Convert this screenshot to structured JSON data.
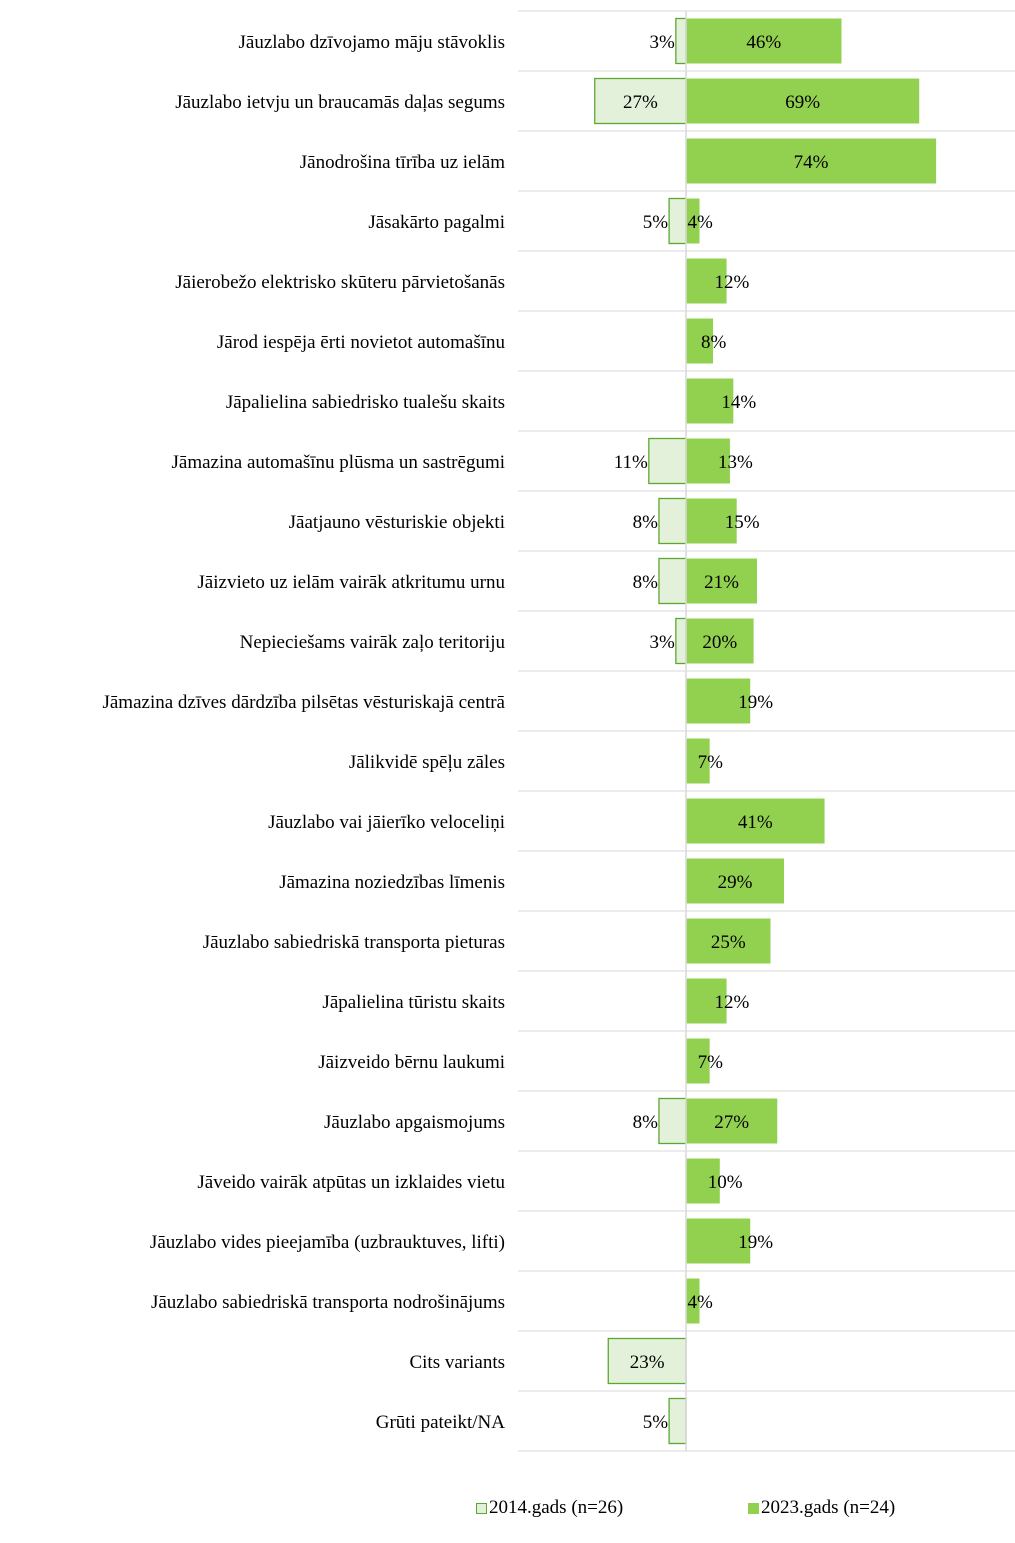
{
  "chart_data": {
    "type": "bar",
    "orientation": "diverging-horizontal",
    "categories": [
      "Jāuzlabo dzīvojamo māju stāvoklis",
      "Jāuzlabo ietvju un braucamās daļas segums",
      "Jānodrošina tīrība uz ielām",
      "Jāsakārto pagalmi",
      "Jāierobežo elektrisko skūteru pārvietošanās",
      "Jārod iespēja ērti novietot automašīnu",
      "Jāpalielina sabiedrisko tualešu skaits",
      "Jāmazina automašīnu plūsma un sastrēgumi",
      "Jāatjauno vēsturiskie objekti",
      "Jāizvieto uz ielām vairāk atkritumu urnu",
      "Nepieciešams vairāk zaļo teritoriju",
      "Jāmazina dzīves dārdzība pilsētas vēsturiskajā centrā",
      "Jālikvidē spēļu zāles",
      "Jāuzlabo vai jāierīko veloceliņi",
      "Jāmazina noziedzības līmenis",
      "Jāuzlabo sabiedriskā transporta pieturas",
      "Jāpalielina tūristu skaits",
      "Jāizveido bērnu laukumi",
      "Jāuzlabo apgaismojums",
      "Jāveido vairāk atpūtas un izklaides vietu",
      "Jāuzlabo vides pieejamība (uzbrauktuves, lifti)",
      "Jāuzlabo sabiedriskā transporta nodrošinājums",
      "Cits variants",
      "Grūti pateikt/NA"
    ],
    "series": [
      {
        "name": "2014.gads (n=26)",
        "direction": "left",
        "fill": "#e4f1da",
        "stroke": "#5aa832",
        "values": [
          3,
          27,
          null,
          5,
          null,
          null,
          null,
          11,
          8,
          8,
          3,
          null,
          null,
          null,
          null,
          null,
          null,
          null,
          8,
          null,
          null,
          null,
          23,
          5
        ],
        "labels": [
          "3%",
          "27%",
          "",
          "5%",
          "",
          "",
          "",
          "11%",
          "8%",
          "8%",
          "3%",
          "",
          "",
          "",
          "",
          "",
          "",
          "",
          "8%",
          "",
          "",
          "",
          "23%",
          "5%"
        ]
      },
      {
        "name": "2023.gads (n=24)",
        "direction": "right",
        "fill": "#92d050",
        "stroke": "#92d050",
        "values": [
          46,
          69,
          74,
          4,
          12,
          8,
          14,
          13,
          15,
          21,
          20,
          19,
          7,
          41,
          29,
          25,
          12,
          7,
          27,
          10,
          19,
          4,
          null,
          null
        ],
        "labels": [
          "46%",
          "69%",
          "74%",
          "4%",
          "12%",
          "8%",
          "14%",
          "13%",
          "15%",
          "21%",
          "20%",
          "19%",
          "7%",
          "41%",
          "29%",
          "25%",
          "12%",
          "7%",
          "27%",
          "10%",
          "19%",
          "4%",
          "",
          ""
        ]
      }
    ],
    "unit": "%",
    "grid": false,
    "legend_position": "bottom"
  },
  "legend": {
    "items": [
      {
        "label": "2014.gads (n=26)"
      },
      {
        "label": "2023.gads (n=24)"
      }
    ]
  }
}
